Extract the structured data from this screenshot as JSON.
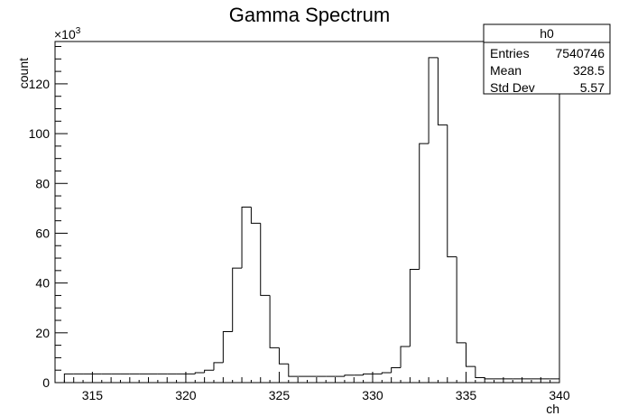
{
  "chart_data": {
    "type": "histogram",
    "title": "Gamma Spectrum",
    "xlabel": "ch",
    "ylabel": "count",
    "y_multiplier_label": "×10",
    "y_multiplier_exp": "3",
    "xlim": [
      313,
      340
    ],
    "ylim": [
      0,
      137000
    ],
    "bin_width": 0.5,
    "x_ticks": [
      315,
      320,
      325,
      330,
      335,
      340
    ],
    "x_tick_labels": [
      "315",
      "320",
      "325",
      "330",
      "335",
      "340"
    ],
    "y_ticks": [
      0,
      20000,
      40000,
      60000,
      80000,
      100000,
      120000
    ],
    "y_tick_labels": [
      "0",
      "20",
      "40",
      "60",
      "80",
      "100",
      "120"
    ],
    "x": [
      313.5,
      314,
      314.5,
      315,
      315.5,
      316,
      316.5,
      317,
      317.5,
      318,
      318.5,
      319,
      319.5,
      320,
      320.5,
      321,
      321.5,
      322,
      322.5,
      323,
      323.5,
      324,
      324.5,
      325,
      325.5,
      326,
      326.5,
      327,
      327.5,
      328,
      328.5,
      329,
      329.5,
      330,
      330.5,
      331,
      331.5,
      332,
      332.5,
      333,
      333.5,
      334,
      334.5,
      335,
      335.5,
      336,
      336.5,
      337,
      337.5,
      338,
      338.5,
      339,
      339.5
    ],
    "values": [
      3500,
      3500,
      3500,
      3500,
      3500,
      3500,
      3500,
      3500,
      3500,
      3500,
      3500,
      3500,
      3500,
      3500,
      4000,
      5000,
      8000,
      20500,
      46000,
      70500,
      64000,
      35000,
      14000,
      7500,
      2500,
      2500,
      2500,
      2500,
      2500,
      2500,
      3000,
      3000,
      3500,
      3500,
      4000,
      6000,
      14500,
      45500,
      96000,
      130500,
      103500,
      50500,
      16000,
      6500,
      2000,
      1500,
      1500,
      1500,
      1500,
      1500,
      1500,
      1500,
      1500
    ],
    "stats_box": {
      "name": "h0",
      "rows": [
        {
          "label": "Entries",
          "value": "7540746"
        },
        {
          "label": "Mean",
          "value": "328.5"
        },
        {
          "label": "Std Dev",
          "value": "5.57"
        }
      ]
    },
    "line_color": "#000000"
  }
}
